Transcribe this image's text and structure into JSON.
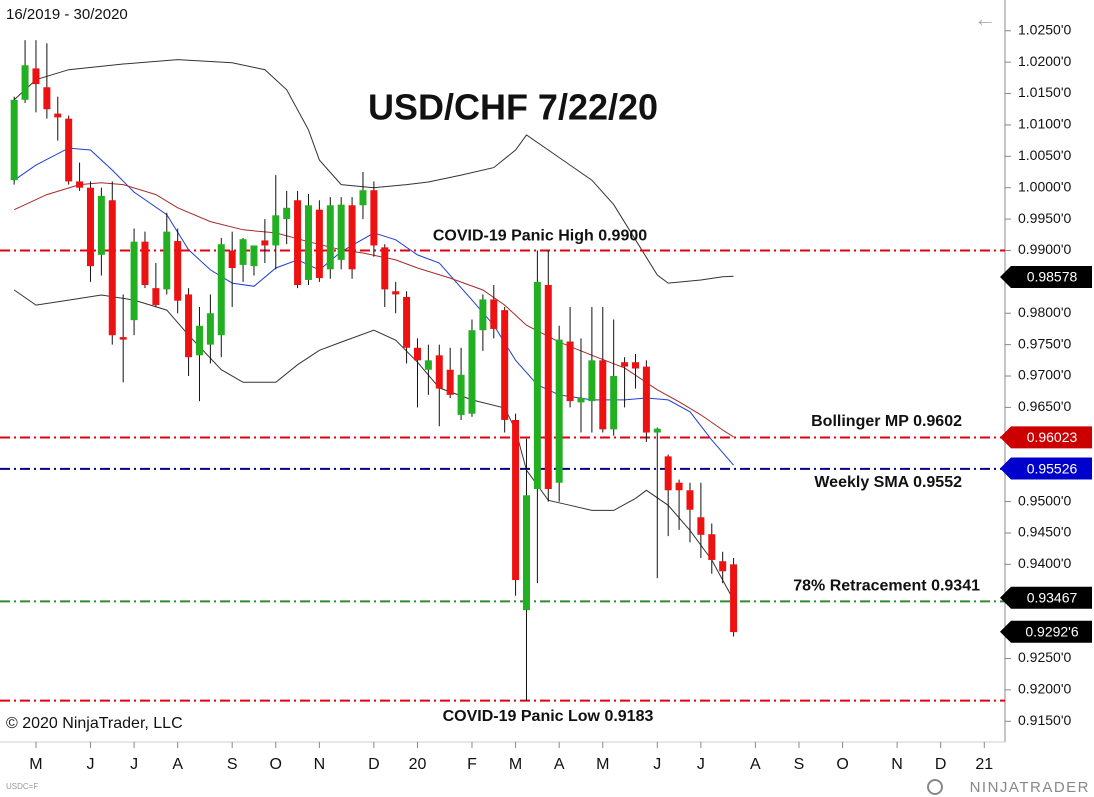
{
  "chart_data": {
    "type": "candlestick",
    "title": "USD/CHF 7/22/20",
    "date_range": "16/2019 - 30/2020",
    "copyright": "© 2020 NinjaTrader, LLC",
    "symbol": "USDC=F",
    "brand": "NINJATRADER",
    "back_icon": "←",
    "up_color": "#22b022",
    "down_color": "#ee1111",
    "x": [
      0,
      1,
      2,
      3,
      4,
      5,
      6,
      7,
      8,
      9,
      10,
      11,
      12,
      13,
      14,
      15,
      16,
      17,
      18,
      19,
      20,
      21,
      22,
      23,
      24,
      25,
      26,
      27,
      28,
      29,
      30,
      31,
      32,
      33,
      34,
      35,
      36,
      37,
      38,
      39,
      40,
      41,
      42,
      43,
      44,
      45,
      46,
      47,
      48,
      49,
      50,
      51,
      52,
      53,
      54,
      55,
      56,
      57,
      58,
      59,
      60,
      61,
      62,
      63,
      64,
      65,
      66
    ],
    "open": [
      1.0012,
      1.014,
      1.019,
      1.016,
      1.0118,
      1.011,
      1.001,
      1.0,
      0.9893,
      0.998,
      0.9762,
      0.9789,
      0.9914,
      0.984,
      0.9838,
      0.9915,
      0.983,
      0.9733,
      0.975,
      0.9765,
      0.99,
      0.9877,
      0.9875,
      0.9916,
      0.9908,
      0.995,
      0.998,
      0.9853,
      0.9965,
      0.987,
      0.9885,
      0.9972,
      0.9972,
      0.9996,
      0.9905,
      0.9835,
      0.9826,
      0.9745,
      0.971,
      0.9733,
      0.971,
      0.9638,
      0.964,
      0.9773,
      0.9822,
      0.9805,
      0.963,
      0.9327,
      0.952,
      0.9845,
      0.953,
      0.9755,
      0.9658,
      0.966,
      0.9725,
      0.9615,
      0.9722,
      0.9722,
      0.9715,
      0.961,
      0.9572,
      0.953,
      0.9518,
      0.9475,
      0.9448,
      0.9405,
      0.94
    ],
    "high": [
      1.0145,
      1.0235,
      1.0235,
      1.023,
      1.0145,
      1.0115,
      1.004,
      1.001,
      1.0,
      1.001,
      0.983,
      0.9935,
      0.993,
      0.988,
      0.996,
      0.9935,
      0.984,
      0.981,
      0.983,
      0.992,
      0.993,
      0.992,
      0.99,
      0.995,
      1.002,
      0.9995,
      0.9995,
      0.999,
      0.998,
      0.9985,
      0.9985,
      0.9985,
      1.0025,
      1.001,
      0.991,
      0.985,
      0.9835,
      0.976,
      0.975,
      0.975,
      0.9745,
      0.9745,
      0.979,
      0.983,
      0.9845,
      0.981,
      0.964,
      0.96,
      0.99,
      0.99,
      0.978,
      0.981,
      0.976,
      0.981,
      0.981,
      0.979,
      0.973,
      0.9735,
      0.9725,
      0.9618,
      0.9575,
      0.9535,
      0.953,
      0.953,
      0.9465,
      0.942,
      0.941
    ],
    "low": [
      1.0005,
      1.0135,
      1.012,
      1.011,
      1.0075,
      1.0005,
      0.9995,
      0.985,
      0.986,
      0.975,
      0.969,
      0.9765,
      0.984,
      0.981,
      0.983,
      0.98,
      0.97,
      0.966,
      0.972,
      0.973,
      0.981,
      0.985,
      0.986,
      0.988,
      0.987,
      0.991,
      0.984,
      0.9845,
      0.985,
      0.9855,
      0.987,
      0.9855,
      0.995,
      0.989,
      0.981,
      0.98,
      0.972,
      0.965,
      0.967,
      0.962,
      0.9665,
      0.963,
      0.9635,
      0.974,
      0.976,
      0.961,
      0.935,
      0.9183,
      0.937,
      0.95,
      0.95,
      0.965,
      0.961,
      0.961,
      0.961,
      0.9605,
      0.965,
      0.968,
      0.9595,
      0.9378,
      0.9445,
      0.9455,
      0.9435,
      0.941,
      0.9385,
      0.937,
      0.9285
    ],
    "close": [
      1.014,
      1.0195,
      1.0165,
      1.0125,
      1.0112,
      1.001,
      1.0,
      0.9875,
      0.9987,
      0.9765,
      0.9758,
      0.9914,
      0.9845,
      0.9813,
      0.993,
      0.982,
      0.973,
      0.978,
      0.98,
      0.991,
      0.9872,
      0.9918,
      0.9908,
      0.9908,
      0.9956,
      0.9968,
      0.9845,
      0.9972,
      0.9856,
      0.9972,
      0.9973,
      0.987,
      0.9996,
      0.9908,
      0.9838,
      0.983,
      0.9745,
      0.9725,
      0.9725,
      0.968,
      0.967,
      0.9702,
      0.9773,
      0.9822,
      0.9775,
      0.963,
      0.9375,
      0.951,
      0.985,
      0.952,
      0.9758,
      0.966,
      0.9665,
      0.9725,
      0.9615,
      0.97,
      0.9715,
      0.9712,
      0.961,
      0.9616,
      0.9518,
      0.9518,
      0.9487,
      0.9447,
      0.9407,
      0.9389,
      0.9292
    ],
    "overlays": [
      {
        "color": "#333333",
        "x": [
          0,
          2,
          5,
          10,
          15,
          20,
          23,
          25,
          27,
          28,
          30,
          33,
          36,
          38,
          41,
          44,
          46,
          47,
          49,
          51,
          53,
          55,
          57,
          59,
          60,
          63,
          65,
          66
        ],
        "values": [
          1.014,
          1.0172,
          1.0188,
          1.0197,
          1.0204,
          1.0199,
          1.0188,
          1.0156,
          1.0092,
          1.0044,
          1.0005,
          1.0,
          1.0005,
          1.0009,
          1.002,
          1.0032,
          1.006,
          1.0084,
          1.006,
          1.0036,
          1.0012,
          0.9973,
          0.9917,
          0.9861,
          0.9848,
          0.9853,
          0.9858,
          0.9859
        ]
      },
      {
        "color": "#333333",
        "x": [
          0,
          2,
          5,
          8,
          11,
          14,
          16,
          19,
          21,
          24,
          26,
          28,
          30,
          33,
          35,
          37,
          39,
          42,
          45,
          46,
          47,
          49,
          51,
          53,
          55,
          57,
          58,
          60,
          62,
          64,
          66
        ],
        "values": [
          0.9837,
          0.9813,
          0.9821,
          0.9829,
          0.9821,
          0.9805,
          0.9765,
          0.971,
          0.969,
          0.969,
          0.9718,
          0.9741,
          0.9754,
          0.9773,
          0.9757,
          0.9722,
          0.9681,
          0.9662,
          0.9649,
          0.9614,
          0.955,
          0.9502,
          0.9494,
          0.9486,
          0.9486,
          0.9505,
          0.9518,
          0.9494,
          0.9454,
          0.9407,
          0.9343
        ]
      },
      {
        "color": "#1f3fd0",
        "x": [
          0,
          2,
          5,
          7,
          9,
          11,
          14,
          16,
          18,
          20,
          22,
          24,
          26,
          28,
          30,
          33,
          35,
          37,
          39,
          42,
          44,
          46,
          48,
          50,
          53,
          56,
          58,
          60,
          62,
          64,
          66
        ],
        "values": [
          1.0012,
          1.0036,
          1.0063,
          1.006,
          1.0028,
          0.9993,
          0.9957,
          0.9901,
          0.9869,
          0.9848,
          0.9843,
          0.9872,
          0.9885,
          0.9869,
          0.9898,
          0.9928,
          0.9917,
          0.9893,
          0.988,
          0.9821,
          0.9781,
          0.9725,
          0.9686,
          0.967,
          0.9662,
          0.9662,
          0.9665,
          0.9662,
          0.9643,
          0.9598,
          0.9558
        ]
      },
      {
        "color": "#a52a2a",
        "x": [
          0,
          3,
          6,
          8,
          10,
          13,
          15,
          18,
          21,
          24,
          27,
          30,
          32,
          35,
          37,
          40,
          43,
          45,
          47,
          50,
          53,
          56,
          59,
          61,
          63,
          65,
          66
        ],
        "values": [
          0.9965,
          0.9989,
          1.0005,
          1.0008,
          1.0005,
          0.9989,
          0.9968,
          0.9946,
          0.9933,
          0.9928,
          0.9914,
          0.9901,
          0.9896,
          0.9885,
          0.9872,
          0.9856,
          0.9837,
          0.9813,
          0.9781,
          0.9754,
          0.9733,
          0.9713,
          0.9678,
          0.9659,
          0.9638,
          0.9614,
          0.9603
        ]
      }
    ],
    "levels": [
      {
        "label": "COVID-19 Panic High 0.9900",
        "value": 0.99,
        "color": "#e0000f"
      },
      {
        "label": "Bollinger MP 0.9602",
        "value": 0.9602,
        "color": "#e0000f"
      },
      {
        "label": "Weekly SMA  0.9552",
        "value": 0.9552,
        "color": "#00008b"
      },
      {
        "label": "78% Retracement 0.9341",
        "value": 0.9341,
        "color": "#2e8b2e"
      },
      {
        "label": "COVID-19 Panic Low 0.9183",
        "value": 0.9183,
        "color": "#e0000f"
      }
    ],
    "price_markers": [
      {
        "price": 0.98578,
        "color": "#000000"
      },
      {
        "price": 0.96023,
        "color": "#cc0000"
      },
      {
        "price": 0.95526,
        "color": "#0000cc"
      },
      {
        "price": 0.93467,
        "color": "#000000"
      },
      {
        "price": {
          "value": 0.92926,
          "label": "0.9292'6"
        },
        "color": "#000000"
      }
    ],
    "xlim": [
      -1.3,
      90.9
    ],
    "xticks": [
      {
        "value": 2,
        "label": "M"
      },
      {
        "value": 7,
        "label": "J"
      },
      {
        "value": 11,
        "label": "J"
      },
      {
        "value": 15,
        "label": "A"
      },
      {
        "value": 20,
        "label": "S"
      },
      {
        "value": 24,
        "label": "O"
      },
      {
        "value": 28,
        "label": "N"
      },
      {
        "value": 33,
        "label": "D"
      },
      {
        "value": 37,
        "label": "20"
      },
      {
        "value": 42,
        "label": "F"
      },
      {
        "value": 46,
        "label": "M"
      },
      {
        "value": 50,
        "label": "A"
      },
      {
        "value": 54,
        "label": "M"
      },
      {
        "value": 59,
        "label": "J"
      },
      {
        "value": 63,
        "label": "J"
      },
      {
        "value": 68,
        "label": "A"
      },
      {
        "value": 72,
        "label": "S"
      },
      {
        "value": 76,
        "label": "O"
      },
      {
        "value": 81,
        "label": "N"
      },
      {
        "value": 85,
        "label": "D"
      },
      {
        "value": 89,
        "label": "21"
      }
    ],
    "ylim": [
      0.9117,
      1.0299
    ],
    "yticks": [
      {
        "value": 1.025,
        "label": "1.0250'0"
      },
      {
        "value": 1.02,
        "label": "1.0200'0"
      },
      {
        "value": 1.015,
        "label": "1.0150'0"
      },
      {
        "value": 1.01,
        "label": "1.0100'0"
      },
      {
        "value": 1.005,
        "label": "1.0050'0"
      },
      {
        "value": 1.0,
        "label": "1.0000'0"
      },
      {
        "value": 0.995,
        "label": "0.9950'0"
      },
      {
        "value": 0.99,
        "label": "0.9900'0"
      },
      {
        "value": 0.985,
        "label": "0.9850'0"
      },
      {
        "value": 0.98,
        "label": "0.9800'0"
      },
      {
        "value": 0.975,
        "label": "0.9750'0"
      },
      {
        "value": 0.97,
        "label": "0.9700'0"
      },
      {
        "value": 0.965,
        "label": "0.9650'0"
      },
      {
        "value": 0.96,
        "label": "0.9600'0"
      },
      {
        "value": 0.955,
        "label": "0.9550'0"
      },
      {
        "value": 0.95,
        "label": "0.9500'0"
      },
      {
        "value": 0.945,
        "label": "0.9450'0"
      },
      {
        "value": 0.94,
        "label": "0.9400'0"
      },
      {
        "value": 0.935,
        "label": "0.9350'0"
      },
      {
        "value": 0.93,
        "label": "0.9300'0"
      },
      {
        "value": 0.925,
        "label": "0.9250'0"
      },
      {
        "value": 0.92,
        "label": "0.9200'0"
      },
      {
        "value": 0.915,
        "label": "0.9150'0"
      }
    ]
  }
}
